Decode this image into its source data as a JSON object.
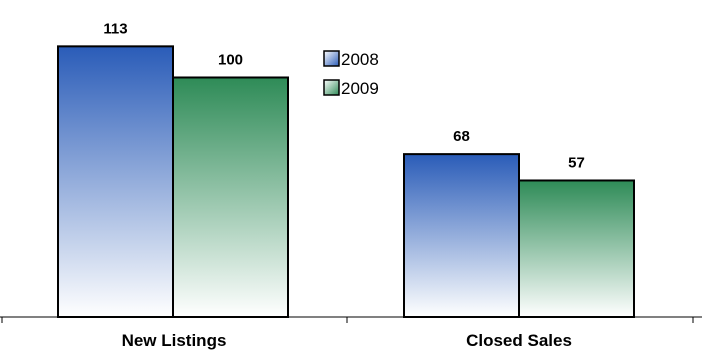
{
  "chart_data": {
    "type": "bar",
    "categories": [
      "New Listings",
      "Closed Sales"
    ],
    "series": [
      {
        "name": "2008",
        "values": [
          113,
          68
        ],
        "color": "#2a5cb8"
      },
      {
        "name": "2009",
        "values": [
          100,
          57
        ],
        "color": "#2e8b57"
      }
    ],
    "title": "",
    "xlabel": "",
    "ylabel": "",
    "ylim": [
      0,
      124
    ],
    "grid": false,
    "legend_position": "top-center",
    "data_labels": true
  }
}
